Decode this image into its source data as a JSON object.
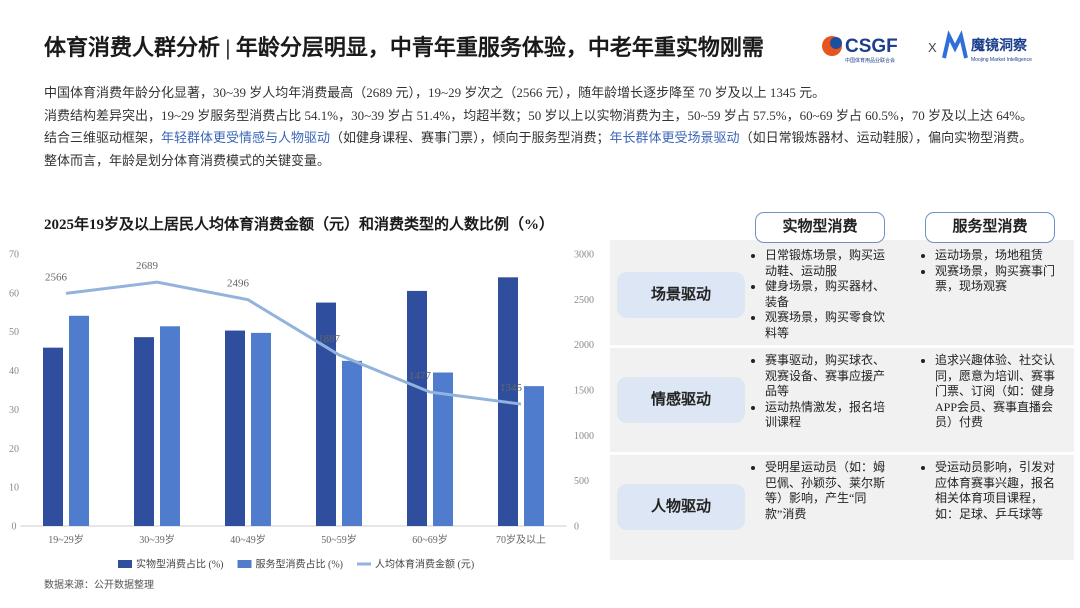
{
  "header": {
    "title": "体育消费人群分析 | 年龄分层明显，中青年重服务体验，中老年重实物刚需",
    "logos": {
      "csgf": "CSGF",
      "csgf_sub": "中国体育用品业联合会",
      "separator": "X",
      "moojing": "魔镜洞察",
      "moojing_sub": "Moojing Market Intelligence"
    }
  },
  "paragraphs": [
    [
      {
        "text": "中国体育消费年龄分化显著，30~39 岁人均年消费最高（2689 元），19~29 岁次之（2566 元），随年龄增长逐步降至 70 岁及以上 1345 元。"
      }
    ],
    [
      {
        "text": "消费结构差异突出，19~29 岁服务型消费占比 54.1%，30~39 岁占 51.4%，均超半数；50 岁以上以实物消费为主，50~59 岁占 57.5%，60~69 岁占 60.5%，70 岁及以上达 64%。"
      }
    ],
    [
      {
        "text": "结合三维驱动框架，"
      },
      {
        "text": "年轻群体更受情感与人物驱动",
        "emphasis": true
      },
      {
        "text": "（如健身课程、赛事门票），倾向于服务型消费；"
      },
      {
        "text": "年长群体更受场景驱动",
        "emphasis": true
      },
      {
        "text": "（如日常锻炼器材、运动鞋服），偏向实物型消费。整体而言，年龄是划分体育消费模式的关键变量。"
      }
    ]
  ],
  "chart_data": {
    "type": "bar",
    "title": "2025年19岁及以上居民人均体育消费金额（元）和消费类型的人数比例（%）",
    "categories": [
      "19~29岁",
      "30~39岁",
      "40~49岁",
      "50~59岁",
      "60~69岁",
      "70岁及以上"
    ],
    "series": [
      {
        "name": "实物型消费占比 (%)",
        "color": "#2f4f9e",
        "values": [
          45.9,
          48.6,
          50.3,
          57.5,
          60.5,
          64
        ]
      },
      {
        "name": "服务型消费占比 (%)",
        "color": "#4f7ccc",
        "values": [
          54.1,
          51.4,
          49.7,
          42.5,
          39.5,
          36
        ]
      },
      {
        "name": "人均体育消费金额 (元)",
        "color": "#93b3dd",
        "type": "line",
        "axis": "y2",
        "values": [
          2566,
          2689,
          2496,
          1887,
          1477,
          1345
        ]
      }
    ],
    "ylim": [
      0,
      70
    ],
    "yticks": [
      0,
      10,
      20,
      30,
      40,
      50,
      60,
      70
    ],
    "y2lim": [
      0,
      3000
    ],
    "y2ticks": [
      0,
      500,
      1000,
      1500,
      2000,
      2500,
      3000
    ],
    "legend": "bottom"
  },
  "source": "数据来源：公开数据整理",
  "table": {
    "columns": [
      "实物型消费",
      "服务型消费"
    ],
    "rows": [
      {
        "label": "场景驱动",
        "cells": [
          [
            "日常锻炼场景，购买运动鞋、运动服",
            "健身场景，购买器材、装备",
            "观赛场景，购买零食饮料等"
          ],
          [
            "运动场景，场地租赁",
            "观赛场景，购买赛事门票，现场观赛"
          ]
        ]
      },
      {
        "label": "情感驱动",
        "cells": [
          [
            "赛事驱动，购买球衣、观赛设备、赛事应援产品等",
            "运动热情激发，报名培训课程"
          ],
          [
            "追求兴趣体验、社交认同，愿意为培训、赛事门票、订阅（如：健身APP会员、赛事直播会员）付费"
          ]
        ]
      },
      {
        "label": "人物驱动",
        "cells": [
          [
            "受明星运动员（如：姆巴佩、孙颖莎、莱尔斯等）影响，产生“同款”消费"
          ],
          [
            "受运动员影响，引发对应体育赛事兴趣，报名相关体育项目课程，如：足球、乒乓球等"
          ]
        ]
      }
    ]
  }
}
